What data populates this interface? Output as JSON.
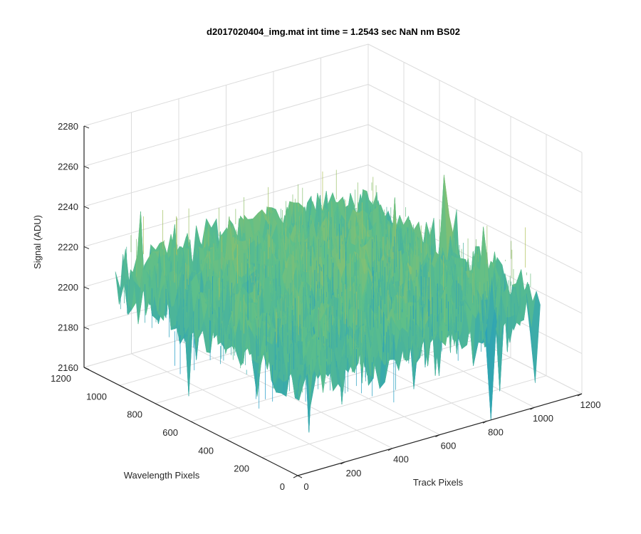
{
  "chart_data": {
    "type": "surface",
    "title": "d2017020404_img.mat int time = 1.2543 sec  NaN nm BS02",
    "xlabel": "Track Pixels",
    "ylabel": "Wavelength Pixels",
    "zlabel": "Signal (ADU)",
    "xlim": [
      0,
      1200
    ],
    "ylim": [
      0,
      1200
    ],
    "zlim": [
      2160,
      2280
    ],
    "xticks": [
      0,
      200,
      400,
      600,
      800,
      1000,
      1200
    ],
    "yticks": [
      0,
      200,
      400,
      600,
      800,
      1000,
      1200
    ],
    "zticks": [
      2160,
      2180,
      2200,
      2220,
      2240,
      2260,
      2280
    ],
    "grid": true,
    "colormap": "parula",
    "surface": {
      "x_extent": [
        0,
        1024
      ],
      "y_extent": [
        0,
        1024
      ],
      "mean_signal": 2212,
      "noise_range": [
        2170,
        2265
      ],
      "color_low": "#0b8fd6",
      "color_mid": "#5dbf8a",
      "color_high": "#e6c23a"
    }
  },
  "colors": {
    "axis": "#262626",
    "grid": "#dcdcdc",
    "background": "#ffffff"
  }
}
